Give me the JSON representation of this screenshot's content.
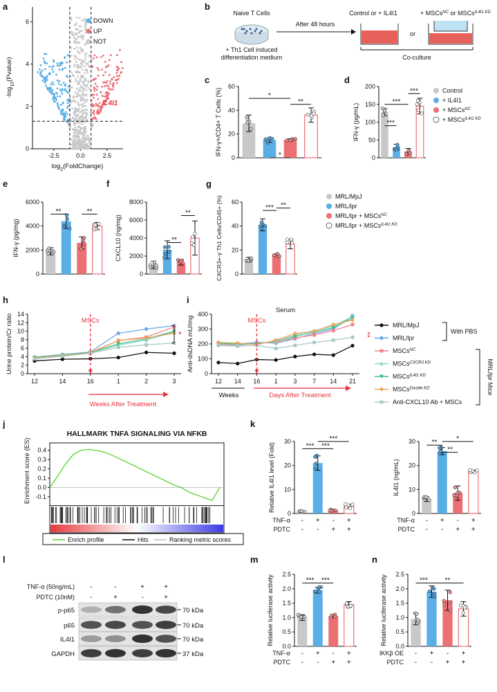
{
  "colors": {
    "gray": "#c8c8c8",
    "blue": "#5aaee6",
    "red": "#ec6f74",
    "white": "#ffffff",
    "up": "#ec6f74",
    "down": "#5aaee6",
    "not": "#c8c8c8",
    "redText": "#e8323a",
    "line_mpj": "#111111",
    "line_lpr": "#6aa6e8",
    "line_nc": "#f2838a",
    "line_cxcr3": "#8fd6c8",
    "line_il4i1": "#3fbf7f",
    "line_double": "#f0a05a",
    "line_anti": "#a8c8c8",
    "gsea": "#55d22a"
  },
  "panel_letters": {
    "a": "a",
    "b": "b",
    "c": "c",
    "d": "d",
    "e": "e",
    "f": "f",
    "g": "g",
    "h": "h",
    "i": "i",
    "j": "j",
    "k": "k",
    "l": "l",
    "m": "m",
    "n": "n"
  },
  "chart_data": [
    {
      "id": "a",
      "type": "scatter",
      "ylabel": "-log10(Pvalue)",
      "xlabel": "log2(FoldChange)",
      "x_ticks": [
        "-2.5",
        "0.0",
        "2.5"
      ],
      "y_ticks": [
        "0",
        "2",
        "4",
        "6"
      ],
      "legend": [
        "DOWN",
        "UP",
        "NOT"
      ],
      "annotation": "IL4I1",
      "thresholds": {
        "x": [
          -1,
          1
        ],
        "y": 1.3
      }
    },
    {
      "id": "c",
      "type": "bar",
      "ylabel": "IFN-γ+/CD4+ T Cells (%)",
      "y_ticks": [
        "0",
        "20",
        "40",
        "60"
      ],
      "ylim": [
        0,
        60
      ],
      "values": [
        29,
        15,
        15,
        36
      ],
      "errors": [
        7,
        2,
        1,
        6
      ],
      "sig": [
        "*",
        "*",
        "**"
      ]
    },
    {
      "id": "d",
      "type": "bar",
      "ylabel": "IFN-γ (pg/mL)",
      "y_ticks": [
        "0",
        "50",
        "100",
        "150",
        "200"
      ],
      "ylim": [
        0,
        200
      ],
      "values": [
        128,
        30,
        18,
        145
      ],
      "errors": [
        10,
        8,
        8,
        22
      ],
      "sig": [
        "***",
        "***",
        "***"
      ],
      "legend": [
        "Control",
        "+ IL4I1",
        "+ MSCs NC",
        "+ MSCs IL4I1 KD"
      ]
    },
    {
      "id": "e",
      "type": "bar",
      "ylabel": "IFN-γ (pg/mg)",
      "y_ticks": [
        "0",
        "2000",
        "4000",
        "6000"
      ],
      "ylim": [
        0,
        6000
      ],
      "values": [
        1900,
        4400,
        2600,
        4000
      ],
      "errors": [
        300,
        600,
        500,
        300
      ],
      "sig": [
        "**",
        "**"
      ]
    },
    {
      "id": "f",
      "type": "bar",
      "ylabel": "CXCL10 (ng/mg)",
      "y_ticks": [
        "0",
        "2000",
        "4000",
        "6000",
        "8000"
      ],
      "ylim": [
        0,
        8000
      ],
      "values": [
        1000,
        2700,
        1300,
        4000
      ],
      "errors": [
        400,
        1000,
        300,
        1900
      ],
      "sig": [
        "**",
        "**"
      ]
    },
    {
      "id": "g",
      "type": "bar",
      "ylabel": "CXCR3+-γ Th1 Cells/CD45+ (%)",
      "y_ticks": [
        "0",
        "20",
        "40",
        "60"
      ],
      "ylim": [
        0,
        60
      ],
      "values": [
        12,
        41,
        16,
        25
      ],
      "errors": [
        2,
        5,
        1,
        4
      ],
      "sig": [
        "***",
        "**"
      ],
      "legend": [
        "MRL/MpJ",
        "MRL/lpr",
        "MRL/lpr + MSCs NC",
        "MRL/lpr + MSCs IL4I1 KD"
      ]
    },
    {
      "id": "h",
      "type": "line",
      "ylabel": "Urine protein/Cr ratio",
      "x_ticks": [
        "12",
        "14",
        "16",
        "1",
        "2",
        "3"
      ],
      "y_ticks": [
        "0",
        "2",
        "4",
        "6",
        "8",
        "10",
        "12",
        "14"
      ],
      "ylim": [
        0,
        14
      ],
      "marker_label": "MSCs",
      "xlabel": "Weeks After Treatment",
      "sig": "*",
      "series": [
        {
          "name": "MRL/MpJ",
          "values": [
            3,
            3.4,
            3.5,
            3.8,
            5,
            4.8
          ]
        },
        {
          "name": "MRL/lpr",
          "values": [
            3.9,
            4.5,
            5.1,
            9.5,
            10.5,
            11.3
          ]
        },
        {
          "name": "MSCs NC",
          "values": [
            3.6,
            4.2,
            5.0,
            7.8,
            8.6,
            11
          ]
        },
        {
          "name": "MSCs CXCR3 KD",
          "values": [
            3.7,
            4.3,
            4.9,
            6.7,
            7.9,
            9.8
          ]
        },
        {
          "name": "MSCs IL4I1 KD",
          "values": [
            3.8,
            4.4,
            5.0,
            7.0,
            8.2,
            10
          ]
        },
        {
          "name": "MSCs Double KD",
          "values": [
            3.7,
            4.3,
            4.9,
            7.8,
            8.4,
            9.5
          ]
        },
        {
          "name": "Anti-CXCL10 Ab + MSCs",
          "values": [
            3.5,
            4.1,
            4.8,
            6.2,
            6.8,
            7.2
          ]
        }
      ]
    },
    {
      "id": "i",
      "type": "line",
      "title": "Serum",
      "ylabel": "Anti-dsDNA mU/mg",
      "x_ticks": [
        "12",
        "14",
        "16",
        "1",
        "3",
        "7",
        "14",
        "21"
      ],
      "y_ticks": [
        "0",
        "100",
        "200",
        "300",
        "400"
      ],
      "ylim": [
        0,
        400
      ],
      "marker_label": "MSCs",
      "xlabel_left": "Weeks",
      "xlabel_right": "Days After Treatment",
      "sig": "**",
      "series": [
        {
          "name": "MRL/MpJ",
          "values": [
            75,
            68,
            95,
            92,
            115,
            130,
            125,
            188
          ]
        },
        {
          "name": "MRL/lpr",
          "values": [
            210,
            200,
            210,
            205,
            235,
            270,
            300,
            390
          ]
        },
        {
          "name": "MSCs NC",
          "values": [
            195,
            190,
            205,
            210,
            240,
            260,
            290,
            330
          ]
        },
        {
          "name": "MSCs CXCR3 KD",
          "values": [
            200,
            195,
            200,
            215,
            260,
            290,
            320,
            385
          ]
        },
        {
          "name": "MSCs IL4I1 KD",
          "values": [
            205,
            200,
            200,
            220,
            250,
            280,
            310,
            375
          ]
        },
        {
          "name": "MSCs Double KD",
          "values": [
            210,
            205,
            195,
            225,
            270,
            285,
            330,
            360
          ]
        },
        {
          "name": "Anti-CXCL10 Ab + MSCs",
          "values": [
            190,
            185,
            190,
            170,
            190,
            210,
            225,
            245
          ]
        }
      ]
    },
    {
      "id": "j",
      "type": "line",
      "title": "HALLMARK TNFA SIGNALING VIA NFKB",
      "ylabel": "Enrichment score (ES)",
      "y_ticks": [
        "0.4",
        "0.3",
        "0.2",
        "0.1",
        "0.0",
        "-0.1"
      ],
      "ylim": [
        -0.15,
        0.45
      ],
      "es": [
        0,
        0.12,
        0.25,
        0.35,
        0.4,
        0.41,
        0.4,
        0.38,
        0.35,
        0.31,
        0.27,
        0.23,
        0.19,
        0.15,
        0.11,
        0.07,
        0.03,
        0,
        -0.05,
        -0.08,
        -0.11,
        -0.14,
        0
      ],
      "legend": [
        "Enrich profile",
        "Hits",
        "Ranking metric scores"
      ]
    },
    {
      "id": "k1",
      "type": "bar",
      "ylabel": "Relative IL4I1 level (Fold)",
      "y_ticks": [
        "0",
        "10",
        "20",
        "30"
      ],
      "ylim": [
        0,
        30
      ],
      "values": [
        0.8,
        21,
        1.3,
        3
      ],
      "errors": [
        0.3,
        3,
        0.4,
        0.8
      ],
      "sig": [
        "***",
        "***",
        "***"
      ],
      "rows": [
        {
          "label": "TNF-α",
          "signs": [
            "-",
            "+",
            "-",
            "+"
          ]
        },
        {
          "label": "PDTC",
          "signs": [
            "-",
            "-",
            "+",
            "+"
          ]
        }
      ]
    },
    {
      "id": "k2",
      "type": "bar",
      "ylabel": "IL4I1 (ng/mL)",
      "y_ticks": [
        "0",
        "10",
        "20",
        "30"
      ],
      "ylim": [
        0,
        30
      ],
      "values": [
        6,
        26,
        8.5,
        17.5
      ],
      "errors": [
        1,
        1.5,
        3,
        0.5
      ],
      "sig": [
        "**",
        "**",
        "*"
      ],
      "rows": [
        {
          "label": "TNF-α",
          "signs": [
            "-",
            "+",
            "-",
            "+"
          ]
        },
        {
          "label": "PDTC",
          "signs": [
            "-",
            "-",
            "+",
            "+"
          ]
        }
      ]
    },
    {
      "id": "m",
      "type": "bar",
      "ylabel": "Relative luciferase activity",
      "y_ticks": [
        "0.0",
        "0.5",
        "1.0",
        "1.5",
        "2.0",
        "2.5"
      ],
      "ylim": [
        0,
        2.5
      ],
      "values": [
        1.0,
        1.95,
        1.05,
        1.45
      ],
      "errors": [
        0.1,
        0.1,
        0.05,
        0.1
      ],
      "sig": [
        "***",
        "***"
      ],
      "rows": [
        {
          "label": "TNF-α",
          "signs": [
            "-",
            "+",
            "-",
            "+"
          ]
        },
        {
          "label": "PDTC",
          "signs": [
            "-",
            "-",
            "+",
            "+"
          ]
        }
      ]
    },
    {
      "id": "n",
      "type": "bar",
      "ylabel": "Relative luciferase activity",
      "y_ticks": [
        "0.0",
        "0.5",
        "1.0",
        "1.5",
        "2.0",
        "2.5"
      ],
      "ylim": [
        0,
        2.5
      ],
      "values": [
        0.95,
        1.9,
        1.6,
        1.3
      ],
      "errors": [
        0.2,
        0.2,
        0.35,
        0.25
      ],
      "sig": [
        "***",
        "**"
      ],
      "rows": [
        {
          "label": "IKKβ OE",
          "signs": [
            "-",
            "+",
            "-",
            "+"
          ]
        },
        {
          "label": "PDTC",
          "signs": [
            "-",
            "-",
            "+",
            "+"
          ]
        }
      ]
    }
  ],
  "panel_b": {
    "naive": "Naive T Cells",
    "medium_line1": "+ Th1 Cell induced",
    "medium_line2": "differentiation medium",
    "after": "After 48 hours",
    "control": "Control or + IL4I1",
    "mscs": "+ MSCs",
    "or": "or",
    "or2": "or MSCs",
    "coculture": "Co-culture",
    "sup_nc": "NC",
    "sup_kd": "IL4I1 KD"
  },
  "legend_d": [
    "Control",
    "+ IL4I1",
    "+ MSCs",
    "+ MSCs"
  ],
  "legend_d_sup": [
    "",
    "",
    "NC",
    "IL4I1 KD"
  ],
  "legend_g": [
    "MRL/MpJ",
    "MRL/lpr",
    "MRL/lpr + MSCs",
    "MRL/lpr + MSCs"
  ],
  "legend_g_sup": [
    "",
    "",
    "NC",
    "IL4I1 KD"
  ],
  "legend_hi": {
    "items": [
      "MRL/MpJ",
      "MRL/lpr",
      "MSCs",
      "MSCs",
      "MSCs",
      "MSCs",
      "Anti-CXCL10 Ab + MSCs"
    ],
    "sups": [
      "",
      "",
      "NC",
      "CXCR3 KD",
      "IL4I1 KD",
      "Double KD",
      ""
    ],
    "with_pbs": "With PBS",
    "mice": "MRL/lpr Mice"
  },
  "panel_l": {
    "tnf": "TNF-α (50ng/mL)",
    "pdtc": "PDTC (10nM)",
    "tnf_signs": [
      "-",
      "-",
      "+",
      "+"
    ],
    "pdtc_signs": [
      "-",
      "+",
      "-",
      "+"
    ],
    "bands": [
      "p-p65",
      "p65",
      "IL4I1",
      "GAPDH"
    ],
    "kda": [
      "70 kDa",
      "70 kDa",
      "70 kDa",
      "37 kDa"
    ]
  },
  "axis_text": {
    "a_y": "-log",
    "a_y_sub": "10",
    "a_y2": "(Pvalue)",
    "a_x": "log",
    "a_x_sub": "2",
    "a_x2": "(FoldChange)",
    "a_x_ticks": [
      "-2.5",
      "0.0",
      "2.5"
    ],
    "a_y_ticks": [
      "0",
      "2",
      "4",
      "6"
    ],
    "a_legend": [
      "DOWN",
      "UP",
      "NOT"
    ],
    "a_ann": "IL4I1"
  }
}
